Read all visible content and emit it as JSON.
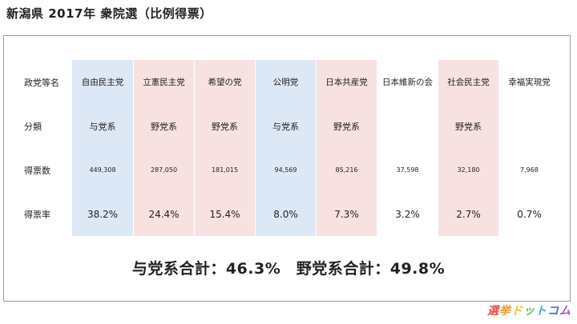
{
  "title": "新潟県 2017年 衆院選（比例得票）",
  "table": {
    "row_labels": [
      "政党等名",
      "分類",
      "得票数",
      "得票率"
    ],
    "columns": [
      {
        "party": "自由民主党",
        "category": "与党系",
        "votes": "449,308",
        "rate": "38.2%",
        "bg": "#dde8f6"
      },
      {
        "party": "立憲民主党",
        "category": "野党系",
        "votes": "287,050",
        "rate": "24.4%",
        "bg": "#f8e1e1"
      },
      {
        "party": "希望の党",
        "category": "野党系",
        "votes": "181,015",
        "rate": "15.4%",
        "bg": "#f8e1e1"
      },
      {
        "party": "公明党",
        "category": "与党系",
        "votes": "94,569",
        "rate": "8.0%",
        "bg": "#dde8f6"
      },
      {
        "party": "日本共産党",
        "category": "野党系",
        "votes": "85,216",
        "rate": "7.3%",
        "bg": "#f8e1e1"
      },
      {
        "party": "日本維新の会",
        "category": "",
        "votes": "37,598",
        "rate": "3.2%",
        "bg": "#ffffff"
      },
      {
        "party": "社会民主党",
        "category": "野党系",
        "votes": "32,180",
        "rate": "2.7%",
        "bg": "#f8e1e1"
      },
      {
        "party": "幸福実現党",
        "category": "",
        "votes": "7,968",
        "rate": "0.7%",
        "bg": "#ffffff"
      }
    ]
  },
  "totals": "与党系合計：46.3%　野党系合計：49.8%",
  "logo": {
    "text": "選挙ドットコム",
    "chars": [
      "選",
      "挙",
      "ド",
      "ッ",
      "ト",
      "コ",
      "ム"
    ],
    "colors": [
      "#e8504a",
      "#f39a2b",
      "#f4c22f",
      "#6bbf4e",
      "#3fa9e0",
      "#4a6fd0",
      "#9b59b6"
    ]
  }
}
